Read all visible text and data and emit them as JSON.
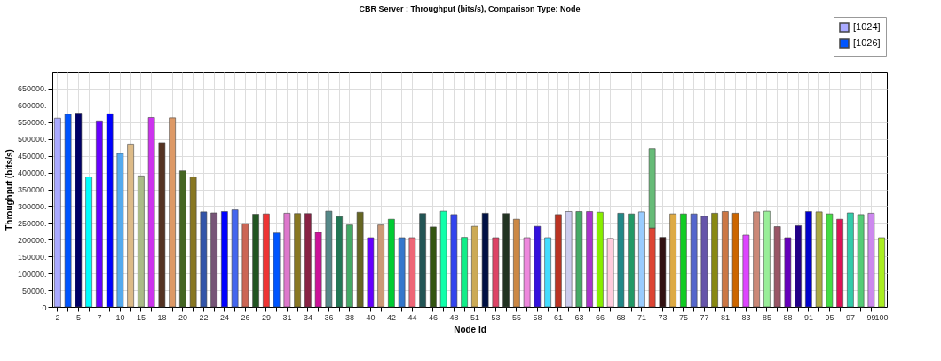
{
  "chart_data": {
    "type": "bar",
    "title": "CBR Server :  Throughput (bits/s), Comparison Type: Node",
    "xlabel": "Node Id",
    "ylabel": "Throughput (bits/s)",
    "categories": [
      "2",
      null,
      "5",
      null,
      "7",
      null,
      "10",
      null,
      "15",
      null,
      "18",
      null,
      "20",
      null,
      "22",
      null,
      "24",
      null,
      "26",
      null,
      "29",
      null,
      "31",
      null,
      "34",
      null,
      "36",
      null,
      "38",
      null,
      "40",
      null,
      "42",
      null,
      "44",
      null,
      "46",
      null,
      "48",
      null,
      "51",
      null,
      "53",
      null,
      "55",
      null,
      "58",
      null,
      "61",
      null,
      "63",
      null,
      "66",
      null,
      "68",
      null,
      "71",
      null,
      "73",
      null,
      "75",
      null,
      "77",
      null,
      "81",
      null,
      "83",
      null,
      "85",
      null,
      "88",
      null,
      "91",
      null,
      "95",
      null,
      "97",
      null,
      "99",
      "100"
    ],
    "stacked": true,
    "series": [
      {
        "name": "[1024]",
        "color": "#aaaaff",
        "values": [
          562000,
          null,
          null,
          null,
          null,
          null,
          null,
          null,
          null,
          null,
          null,
          null,
          null,
          null,
          null,
          null,
          null,
          null,
          null,
          null,
          null,
          null,
          null,
          null,
          null,
          null,
          null,
          null,
          null,
          null,
          null,
          null,
          null,
          null,
          null,
          null,
          null,
          null,
          null,
          null,
          null,
          null,
          null,
          null,
          null,
          null,
          null,
          null,
          null,
          null,
          null,
          null,
          null,
          null,
          null,
          null,
          null,
          null,
          null,
          null,
          null,
          null,
          null,
          null,
          null,
          null,
          null,
          null,
          null,
          null,
          null,
          null,
          null,
          null,
          null,
          null,
          null,
          null,
          null,
          null
        ]
      },
      {
        "name": "[1026]",
        "color": "#0055ff",
        "values": [
          null,
          574000,
          null,
          null,
          null,
          null,
          null,
          null,
          null,
          null,
          null,
          null,
          null,
          null,
          null,
          null,
          null,
          null,
          null,
          null,
          null,
          null,
          null,
          null,
          null,
          null,
          null,
          null,
          null,
          null,
          null,
          null,
          null,
          null,
          null,
          null,
          null,
          null,
          null,
          null,
          null,
          null,
          null,
          null,
          null,
          null,
          null,
          null,
          null,
          null,
          null,
          null,
          null,
          null,
          null,
          null,
          null,
          null,
          null,
          null,
          null,
          null,
          null,
          null,
          null,
          null,
          null,
          null,
          null,
          null,
          null,
          null,
          null,
          null,
          null,
          null,
          null,
          null,
          null,
          null
        ]
      },
      {
        "colors": [
          null,
          null,
          "#000066",
          "#00ffff",
          "#6600ff",
          "#0000ff",
          "#55aaee",
          "#ddbb88",
          "#aabb88",
          "#cc33ee",
          "#553322",
          "#dd9966",
          "#446622",
          "#887722",
          "#3355aa",
          "#775577",
          "#0000ff",
          "#4466ee",
          "#cc6655",
          "#225522",
          "#ee3333",
          "#0055ff",
          "#dd77cc",
          "#887722",
          "#882244",
          "#cc1199",
          "#558888",
          "#227755",
          "#44aa66",
          "#666622",
          "#6600ff",
          "#cc9977",
          "#00cc33",
          "#3377cc",
          "#ee6677",
          "#225555",
          "#335511",
          "#11ffaa",
          "#3344ee",
          "#11ee88",
          "#ccaa55",
          "#001144",
          "#dd4466",
          "#223322",
          "#cc8844",
          "#ee88dd",
          "#3311dd",
          "#44ddff",
          "#bb3322",
          "#ccccee",
          "#44aa66",
          "#aa33cc",
          "#88ee00",
          "#ffccdd",
          "#228888",
          "#229966",
          "#99ccff",
          "#dd4433",
          "#331111",
          "#ddaa44",
          "#11cc22",
          "#5566cc",
          "#6655aa",
          "#888811",
          "#cc7744",
          "#cc6600",
          "#dd44ff",
          "#cc8877",
          "#99ee99",
          "#995566",
          "#6600bb",
          "#220088",
          "#0000cc",
          "#aaaa44",
          "#44dd44",
          "#dd1155",
          "#33ccaa",
          "#55cc77",
          "#cc88ee",
          "#aaee22"
        ],
        "values": [
          null,
          null,
          577000,
          387000,
          554000,
          575000,
          457000,
          485000,
          390000,
          564000,
          489000,
          563000,
          405000,
          387000,
          283000,
          280000,
          284000,
          289000,
          248000,
          276000,
          277000,
          220000,
          279000,
          278000,
          278000,
          222000,
          285000,
          269000,
          244000,
          282000,
          206000,
          244000,
          261000,
          206000,
          206000,
          278000,
          238000,
          285000,
          275000,
          207000,
          240000,
          279000,
          206000,
          278000,
          261000,
          206000,
          240000,
          206000,
          275000,
          284000,
          284000,
          284000,
          282000,
          204000,
          279000,
          277000,
          283000,
          235000,
          207000,
          277000,
          277000,
          277000,
          270000,
          279000,
          284000,
          279000,
          214000,
          283000,
          285000,
          239000,
          206000,
          242000,
          284000,
          283000,
          277000,
          261000,
          280000,
          275000,
          279000,
          206000
        ]
      },
      {
        "color": "#66bb77",
        "values": [
          null,
          null,
          null,
          null,
          null,
          null,
          null,
          null,
          null,
          null,
          null,
          null,
          null,
          null,
          null,
          null,
          null,
          null,
          null,
          null,
          null,
          null,
          null,
          null,
          null,
          null,
          null,
          null,
          null,
          null,
          null,
          null,
          null,
          null,
          null,
          null,
          null,
          null,
          null,
          null,
          null,
          null,
          null,
          null,
          null,
          null,
          null,
          null,
          null,
          null,
          null,
          null,
          null,
          null,
          null,
          null,
          null,
          236000,
          null,
          null,
          null,
          null,
          null,
          null,
          null,
          null,
          null,
          null,
          null,
          null,
          null,
          null,
          null,
          null,
          null,
          null,
          null,
          null,
          null,
          null
        ]
      }
    ],
    "ylim": [
      0,
      700000
    ],
    "yticks": [
      0,
      {
        "value": 50000,
        "label": "50000."
      },
      {
        "value": 100000,
        "label": "100000."
      },
      {
        "value": 150000,
        "label": "150000."
      },
      {
        "value": 200000,
        "label": "200000."
      },
      {
        "value": 250000,
        "label": "250000."
      },
      {
        "value": 300000,
        "label": "300000."
      },
      {
        "value": 350000,
        "label": "350000."
      },
      {
        "value": 400000,
        "label": "400000."
      },
      {
        "value": 450000,
        "label": "450000."
      },
      {
        "value": 500000,
        "label": "500000."
      },
      {
        "value": 550000,
        "label": "550000."
      },
      {
        "value": 600000,
        "label": "600000."
      },
      {
        "value": 650000,
        "label": "650000."
      }
    ],
    "grid": true,
    "legend": "top right"
  }
}
